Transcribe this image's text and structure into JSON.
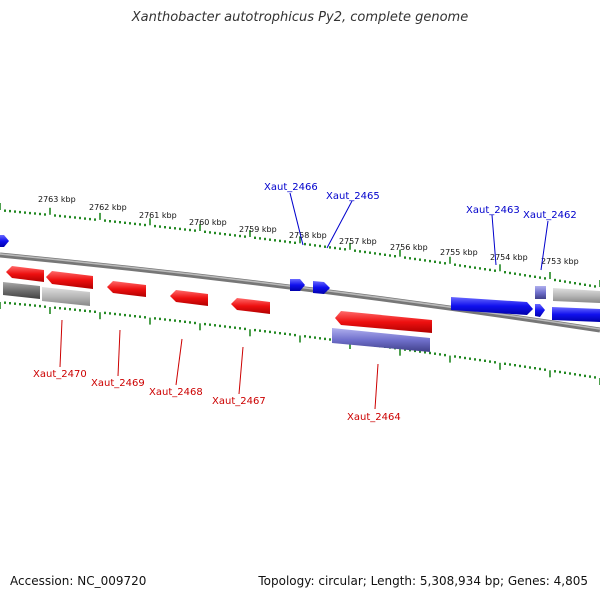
{
  "title": "Xanthobacter autotrophicus Py2, complete genome",
  "footer": {
    "accession": "Accession: NC_009720",
    "summary": "Topology: circular; Length: 5,308,934 bp; Genes: 4,805"
  },
  "kbp_labels": [
    "2763 kbp",
    "2762 kbp",
    "2761 kbp",
    "2760 kbp",
    "2759 kbp",
    "2758 kbp",
    "2757 kbp",
    "2756 kbp",
    "2755 kbp",
    "2754 kbp",
    "2753 kbp"
  ],
  "genes_forward": [
    "Xaut_2466",
    "Xaut_2465",
    "Xaut_2463",
    "Xaut_2462"
  ],
  "genes_reverse": [
    "Xaut_2470",
    "Xaut_2469",
    "Xaut_2468",
    "Xaut_2467",
    "Xaut_2464"
  ],
  "colors": {
    "forward_gene": "#1010ee",
    "reverse_gene": "#ee1010",
    "forward_label": "#0000cc",
    "reverse_label": "#cc0000",
    "tick": "#228822",
    "backbone": "#888888",
    "rna_purple": "#7070cc",
    "pseudo_gray": "#a0a0a0"
  }
}
